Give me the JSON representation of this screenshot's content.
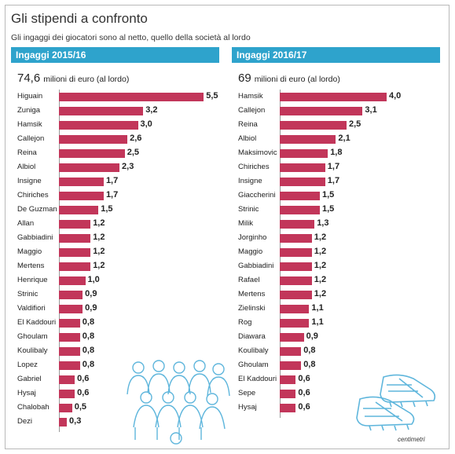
{
  "header": {
    "title": "Gli stipendi a confronto",
    "subtitle": "Gli ingaggi dei giocatori sono al netto, quello della società al lordo"
  },
  "colors": {
    "bar": "#c2365a",
    "band": "#2ea3cc",
    "illustration": "#5fb6dc"
  },
  "credit": "centimetri",
  "chart_data": [
    {
      "type": "bar",
      "orientation": "horizontal",
      "title": "Ingaggi 2015/16",
      "total_value": "74,6",
      "total_unit": "milioni di euro (al lordo)",
      "categories": [
        "Higuain",
        "Zuniga",
        "Hamsik",
        "Callejon",
        "Reina",
        "Albiol",
        "Insigne",
        "Chiriches",
        "De Guzman",
        "Allan",
        "Gabbiadini",
        "Maggio",
        "Mertens",
        "Henrique",
        "Strinic",
        "Valdifiori",
        "El Kaddouri",
        "Ghoulam",
        "Koulibaly",
        "Lopez",
        "Gabriel",
        "Hysaj",
        "Chalobah",
        "Dezi"
      ],
      "values": [
        5.5,
        3.2,
        3.0,
        2.6,
        2.5,
        2.3,
        1.7,
        1.7,
        1.5,
        1.2,
        1.2,
        1.2,
        1.2,
        1.0,
        0.9,
        0.9,
        0.8,
        0.8,
        0.8,
        0.8,
        0.6,
        0.6,
        0.5,
        0.3
      ],
      "labels": [
        "5,5",
        "3,2",
        "3,0",
        "2,6",
        "2,5",
        "2,3",
        "1,7",
        "1,7",
        "1,5",
        "1,2",
        "1,2",
        "1,2",
        "1,2",
        "1,0",
        "0,9",
        "0,9",
        "0,8",
        "0,8",
        "0,8",
        "0,8",
        "0,6",
        "0,6",
        "0,5",
        "0,3"
      ]
    },
    {
      "type": "bar",
      "orientation": "horizontal",
      "title": "Ingaggi 2016/17",
      "total_value": "69",
      "total_unit": "milioni di euro (al lordo)",
      "categories": [
        "Hamsik",
        "Callejon",
        "Reina",
        "Albiol",
        "Maksimovic",
        "Chiriches",
        "Insigne",
        "Giaccherini",
        "Strinic",
        "Milik",
        "Jorginho",
        "Maggio",
        "Gabbiadini",
        "Rafael",
        "Mertens",
        "Zielinski",
        "Rog",
        "Diawara",
        "Koulibaly",
        "Ghoulam",
        "El Kaddouri",
        "Sepe",
        "Hysaj"
      ],
      "values": [
        4.0,
        3.1,
        2.5,
        2.1,
        1.8,
        1.7,
        1.7,
        1.5,
        1.5,
        1.3,
        1.2,
        1.2,
        1.2,
        1.2,
        1.2,
        1.1,
        1.1,
        0.9,
        0.8,
        0.8,
        0.6,
        0.6,
        0.6
      ],
      "labels": [
        "4,0",
        "3,1",
        "2,5",
        "2,1",
        "1,8",
        "1,7",
        "1,7",
        "1,5",
        "1,5",
        "1,3",
        "1,2",
        "1,2",
        "1,2",
        "1,2",
        "1,2",
        "1,1",
        "1,1",
        "0,9",
        "0,8",
        "0,8",
        "0,6",
        "0,6",
        "0,6"
      ]
    }
  ]
}
